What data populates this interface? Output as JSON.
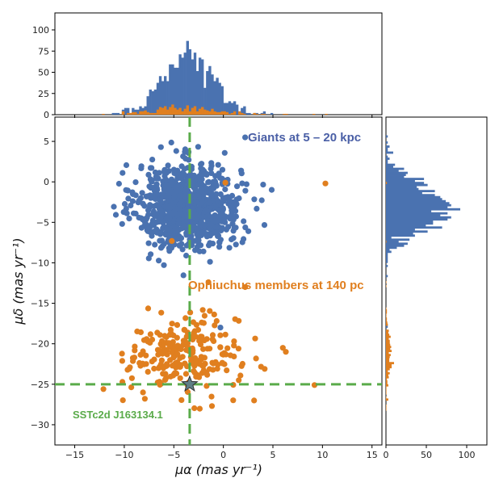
{
  "chart_data": {
    "type": "scatter",
    "main": {
      "xlabel": "μα  (mas yr⁻¹)",
      "ylabel": "μδ  (mas yr⁻¹)",
      "xlim": [
        -17,
        16
      ],
      "ylim": [
        -32.5,
        8
      ],
      "xticks": [
        -15,
        -10,
        -5,
        0,
        5,
        10,
        15
      ],
      "yticks": [
        5,
        0,
        -5,
        -10,
        -15,
        -20,
        -25,
        -30
      ],
      "series": [
        {
          "name": "Giants at 5 – 20 kpc",
          "color": "#4a72b0",
          "center": [
            -3.5,
            -3.0
          ],
          "spread": [
            2.6,
            2.6
          ],
          "count": 900
        },
        {
          "name": "Ophiuchus members at 140 pc",
          "color": "#e07f1f",
          "center": [
            -4.0,
            -21.5
          ],
          "spread": [
            2.8,
            2.4
          ],
          "count": 240
        }
      ],
      "outliers": [
        {
          "series": "Giants at 5 – 20 kpc",
          "points": [
            [
              2.2,
              5.5
            ],
            [
              -0.3,
              -18.0
            ]
          ]
        },
        {
          "series": "Ophiuchus members at 140 pc",
          "points": [
            [
              10.3,
              -0.2
            ],
            [
              0.2,
              -0.1
            ],
            [
              -5.2,
              -7.3
            ],
            [
              9.2,
              -25.1
            ],
            [
              3.1,
              -27.0
            ],
            [
              6.0,
              -20.5
            ],
            [
              6.3,
              -21.0
            ],
            [
              -12.1,
              -25.6
            ],
            [
              2.2,
              -13.0
            ],
            [
              -1.5,
              -12.4
            ]
          ]
        }
      ],
      "crosshair": {
        "x": -3.4,
        "y": -25.0,
        "color": "#5aab4a"
      },
      "star": {
        "x": -3.4,
        "y": -25.0,
        "color": "#5f7f86"
      },
      "annotations": {
        "giants": "Giants at 5 – 20 kpc",
        "ophiuchus": "Ophiuchus members at 140 pc",
        "target": "SSTc2d J163134.1"
      }
    },
    "top_histogram": {
      "ylim": [
        0,
        120
      ],
      "yticks": [
        0,
        25,
        50,
        75,
        100
      ],
      "series": [
        {
          "name": "Giants",
          "color": "#4a72b0",
          "peak": 87
        },
        {
          "name": "Ophiuchus",
          "color": "#e07f1f",
          "peak": 12
        }
      ]
    },
    "right_histogram": {
      "xlim": [
        0,
        125
      ],
      "xticks": [
        0,
        50,
        100
      ],
      "series": [
        {
          "name": "Giants",
          "color": "#4a72b0",
          "peak": 92
        },
        {
          "name": "Ophiuchus",
          "color": "#e07f1f",
          "peak": 10
        }
      ]
    }
  }
}
